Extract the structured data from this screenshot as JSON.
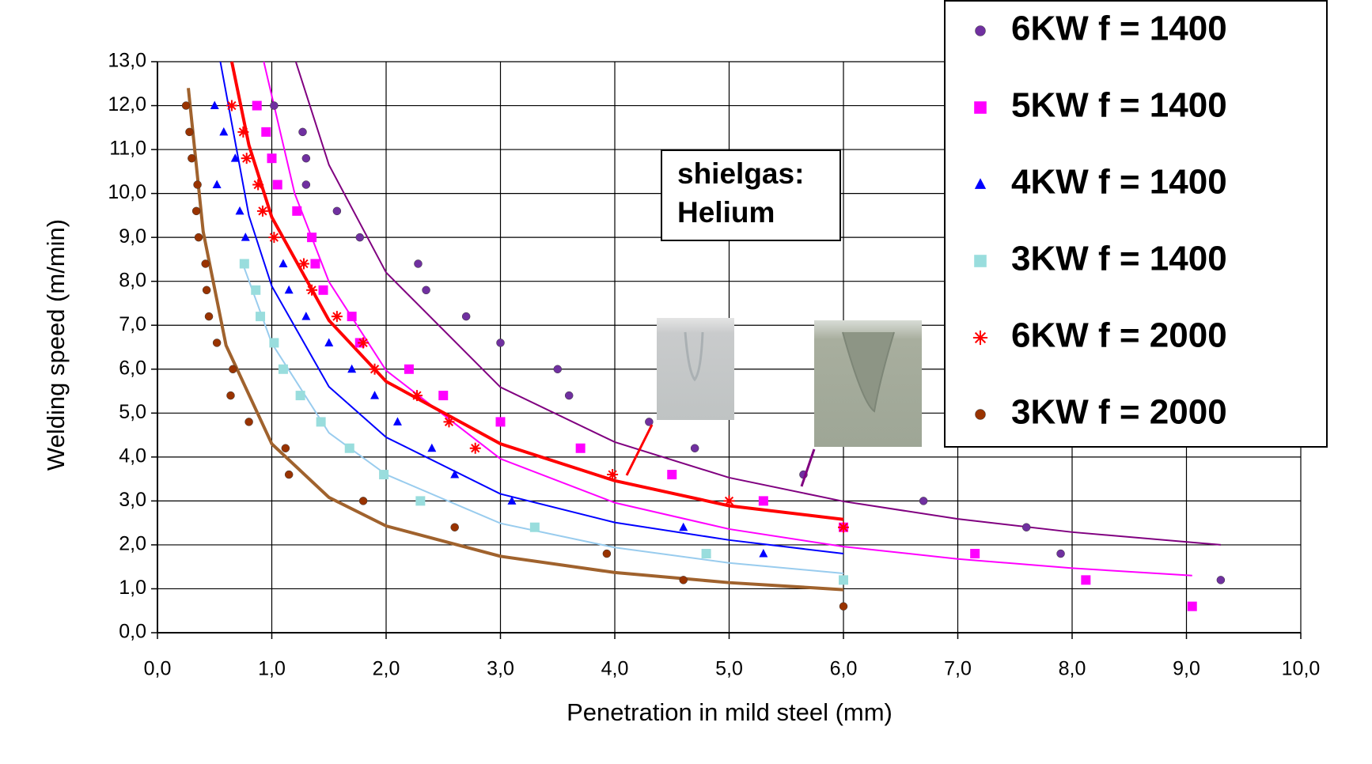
{
  "chart_data": {
    "type": "scatter",
    "xlabel": "Penetration in mild steel (mm)",
    "ylabel": "Welding speed (m/min)",
    "annotation": [
      "shielgas:",
      "Helium"
    ],
    "xlim": [
      0,
      10
    ],
    "ylim": [
      0,
      13
    ],
    "xticks": [
      {
        "value": 0,
        "label": "0,0"
      },
      {
        "value": 1,
        "label": "1,0"
      },
      {
        "value": 2,
        "label": "2,0"
      },
      {
        "value": 3,
        "label": "3,0"
      },
      {
        "value": 4,
        "label": "4,0"
      },
      {
        "value": 5,
        "label": "5,0"
      },
      {
        "value": 6,
        "label": "6,0"
      },
      {
        "value": 7,
        "label": "7,0"
      },
      {
        "value": 8,
        "label": "8,0"
      },
      {
        "value": 9,
        "label": "9,0"
      },
      {
        "value": 10,
        "label": "10,0"
      }
    ],
    "yticks": [
      {
        "value": 0,
        "label": "0,0"
      },
      {
        "value": 1,
        "label": "1,0"
      },
      {
        "value": 2,
        "label": "2,0"
      },
      {
        "value": 3,
        "label": "3,0"
      },
      {
        "value": 4,
        "label": "4,0"
      },
      {
        "value": 5,
        "label": "5,0"
      },
      {
        "value": 6,
        "label": "6,0"
      },
      {
        "value": 7,
        "label": "7,0"
      },
      {
        "value": 8,
        "label": "8,0"
      },
      {
        "value": 9,
        "label": "9,0"
      },
      {
        "value": 10,
        "label": "10,0"
      },
      {
        "value": 11,
        "label": "11,0"
      },
      {
        "value": 12,
        "label": "12,0"
      },
      {
        "value": 13,
        "label": "13,0"
      }
    ],
    "grid": true,
    "legend": "upper right",
    "series": [
      {
        "name": "6KW f = 1400",
        "color": "#7030a0",
        "line_color": "#800080",
        "line_width": 2,
        "marker": "circle",
        "x": [
          1.02,
          1.27,
          1.3,
          1.3,
          1.57,
          1.77,
          2.28,
          2.35,
          2.7,
          3.0,
          3.5,
          3.6,
          4.3,
          4.7,
          5.65,
          6.7,
          7.6,
          7.9,
          9.3
        ],
        "values": [
          12.0,
          11.4,
          10.8,
          10.2,
          9.6,
          9.0,
          8.4,
          7.8,
          7.2,
          6.6,
          6.0,
          5.4,
          4.8,
          4.2,
          3.6,
          3.0,
          2.4,
          1.8,
          1.2
        ],
        "trend": {
          "x": [
            1.21,
            1.5,
            2,
            3,
            4,
            5,
            6,
            7,
            8,
            9.3
          ],
          "y": [
            13.0,
            10.65,
            8.2,
            5.59,
            4.34,
            3.53,
            2.99,
            2.59,
            2.29,
            2.0
          ]
        }
      },
      {
        "name": "5KW f = 1400",
        "color": "#ff00ff",
        "line_color": "#ff00ff",
        "line_width": 2,
        "marker": "square",
        "x": [
          0.87,
          0.95,
          1.0,
          1.05,
          1.22,
          1.35,
          1.38,
          1.45,
          1.7,
          1.77,
          2.2,
          2.5,
          3.0,
          3.7,
          4.5,
          5.3,
          6.0,
          7.15,
          8.12,
          9.05
        ],
        "values": [
          12.0,
          11.4,
          10.8,
          10.2,
          9.6,
          9.0,
          8.4,
          7.8,
          7.2,
          6.6,
          6.0,
          5.4,
          4.8,
          4.2,
          3.6,
          3.0,
          2.4,
          1.8,
          1.2,
          0.6
        ],
        "trend": {
          "x": [
            0.93,
            1.2,
            1.5,
            2,
            3,
            4,
            5,
            6,
            7,
            8,
            9.05
          ],
          "y": [
            13.0,
            10.0,
            7.99,
            5.97,
            3.96,
            2.96,
            2.36,
            1.96,
            1.68,
            1.47,
            1.3
          ]
        }
      },
      {
        "name": "4KW f = 1400",
        "color": "#0000ff",
        "line_color": "#0000ff",
        "line_width": 2,
        "marker": "triangle",
        "x": [
          0.5,
          0.58,
          0.68,
          0.52,
          0.72,
          0.77,
          1.1,
          1.15,
          1.3,
          1.5,
          1.7,
          1.9,
          2.1,
          2.4,
          2.6,
          3.1,
          4.6,
          5.3
        ],
        "values": [
          12.0,
          11.4,
          10.8,
          10.2,
          9.6,
          9.0,
          8.4,
          7.8,
          7.2,
          6.6,
          6.0,
          5.4,
          4.8,
          4.2,
          3.6,
          3.0,
          2.4,
          1.8
        ],
        "trend": {
          "x": [
            0.55,
            0.8,
            1,
            1.5,
            2,
            3,
            4,
            5,
            6
          ],
          "y": [
            13.0,
            9.49,
            7.89,
            5.6,
            4.45,
            3.16,
            2.51,
            2.11,
            1.8
          ]
        }
      },
      {
        "name": "3KW f = 1400",
        "color": "#99dddd",
        "line_color": "#99ccee",
        "line_width": 2,
        "marker": "square",
        "x": [
          0.76,
          0.86,
          0.9,
          1.02,
          1.1,
          1.25,
          1.43,
          1.68,
          1.98,
          2.3,
          3.3,
          4.8,
          6.0
        ],
        "values": [
          8.4,
          7.8,
          7.2,
          6.6,
          6.0,
          5.4,
          4.8,
          4.2,
          3.6,
          3.0,
          2.4,
          1.8,
          1.2
        ],
        "trend": {
          "x": [
            0.76,
            1,
            1.5,
            2,
            3,
            4,
            5,
            6
          ],
          "y": [
            8.3,
            6.59,
            4.55,
            3.6,
            2.49,
            1.94,
            1.59,
            1.35
          ]
        }
      },
      {
        "name": "6KW f = 2000",
        "color": "#ff0000",
        "line_color": "#ff0000",
        "line_width": 4,
        "marker": "star",
        "x": [
          0.65,
          0.75,
          0.78,
          0.88,
          0.92,
          1.02,
          1.28,
          1.35,
          1.57,
          1.8,
          1.9,
          2.27,
          2.55,
          2.78,
          3.98,
          5.0,
          6.0
        ],
        "values": [
          12.0,
          11.4,
          10.8,
          10.2,
          9.6,
          9.0,
          8.4,
          7.8,
          7.2,
          6.6,
          6.0,
          5.4,
          4.8,
          4.2,
          3.6,
          3.0,
          2.4
        ],
        "trend": {
          "x": [
            0.65,
            0.8,
            1,
            1.5,
            2,
            3,
            4,
            5,
            6
          ],
          "y": [
            13.0,
            11.1,
            9.46,
            7.11,
            5.72,
            4.3,
            3.46,
            2.89,
            2.58
          ]
        }
      },
      {
        "name": "3KW f = 2000",
        "color": "#993300",
        "line_color": "#a0622d",
        "line_width": 4,
        "marker": "circle",
        "x": [
          0.25,
          0.28,
          0.3,
          0.35,
          0.34,
          0.36,
          0.42,
          0.43,
          0.45,
          0.52,
          0.66,
          0.64,
          0.8,
          1.12,
          1.15,
          1.8,
          2.6,
          3.93,
          4.6,
          6.0
        ],
        "values": [
          12.0,
          11.4,
          10.8,
          10.2,
          9.6,
          9.0,
          8.4,
          7.8,
          7.2,
          6.6,
          6.0,
          5.4,
          4.8,
          4.2,
          3.6,
          3.0,
          2.4,
          1.8,
          1.2,
          0.6
        ],
        "trend": {
          "x": [
            0.27,
            0.4,
            0.6,
            1,
            1.5,
            2,
            3,
            4,
            5,
            6
          ],
          "y": [
            12.4,
            9.13,
            6.54,
            4.3,
            3.08,
            2.43,
            1.74,
            1.37,
            1.14,
            0.98
          ]
        }
      }
    ]
  }
}
